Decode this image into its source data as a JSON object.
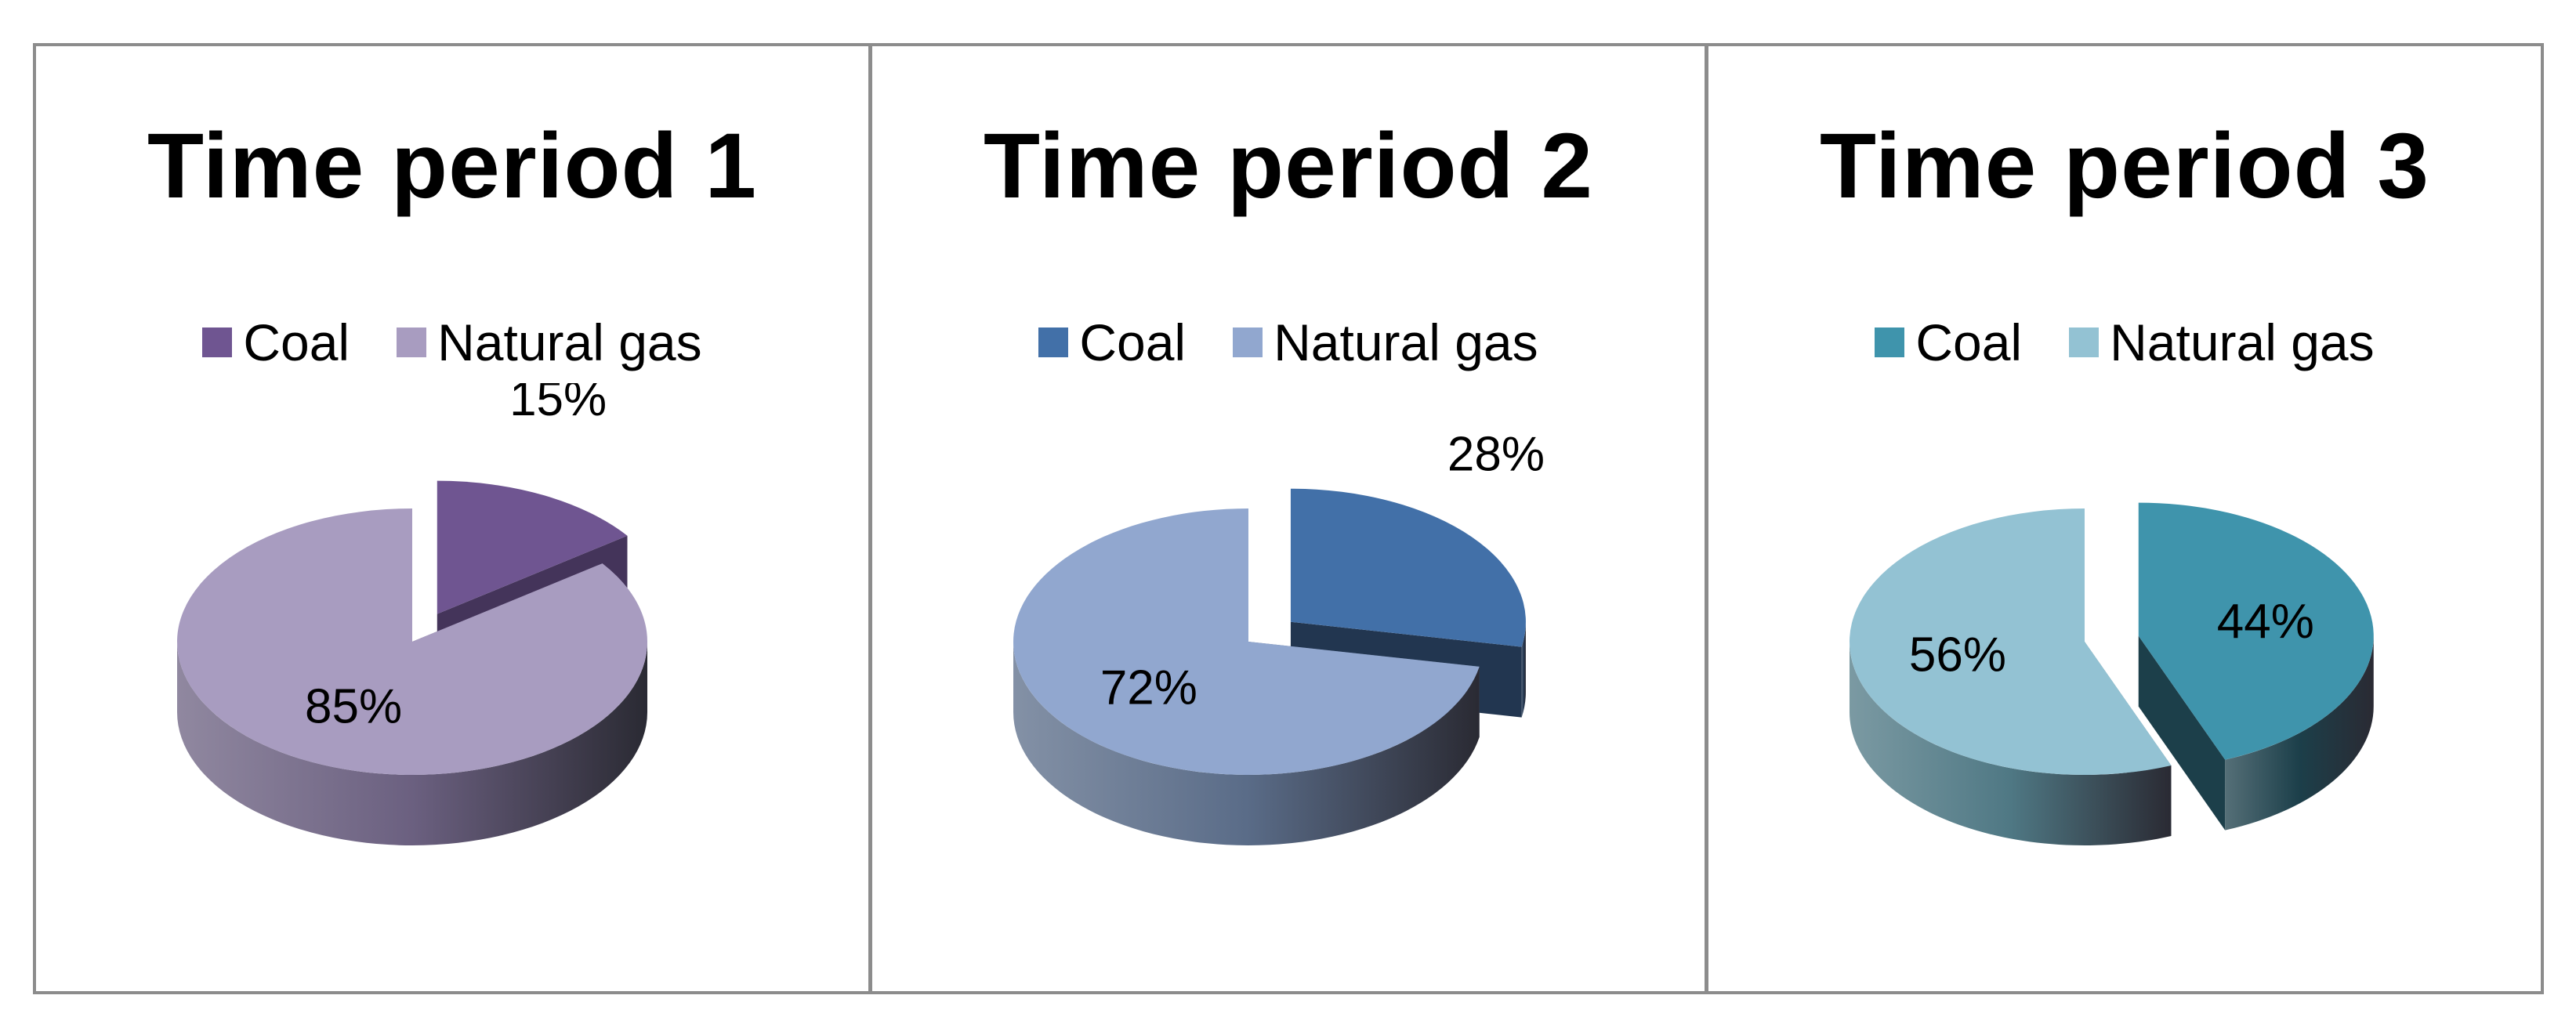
{
  "chart_data": [
    {
      "type": "pie",
      "title": "Time period 1",
      "categories": [
        "Coal",
        "Natural gas"
      ],
      "values": [
        15,
        85
      ],
      "labels": [
        "15%",
        "85%"
      ],
      "colors": {
        "top": [
          "#6f5591",
          "#a89cc0"
        ],
        "side": [
          "#44345a",
          "#6b6080"
        ]
      },
      "legend": "top",
      "exploded": "Coal"
    },
    {
      "type": "pie",
      "title": "Time period 2",
      "categories": [
        "Coal",
        "Natural gas"
      ],
      "values": [
        28,
        72
      ],
      "labels": [
        "28%",
        "72%"
      ],
      "colors": {
        "top": [
          "#4270a8",
          "#91a7cf"
        ],
        "side": [
          "#223650",
          "#5a6c88"
        ]
      },
      "legend": "top",
      "exploded": "Coal"
    },
    {
      "type": "pie",
      "title": "Time period 3",
      "categories": [
        "Coal",
        "Natural gas"
      ],
      "values": [
        44,
        56
      ],
      "labels": [
        "44%",
        "56%"
      ],
      "colors": {
        "top": [
          "#3f94ac",
          "#93c2d3"
        ],
        "side": [
          "#1c3f4a",
          "#4f7884"
        ]
      },
      "legend": "top",
      "exploded": "Coal"
    }
  ]
}
